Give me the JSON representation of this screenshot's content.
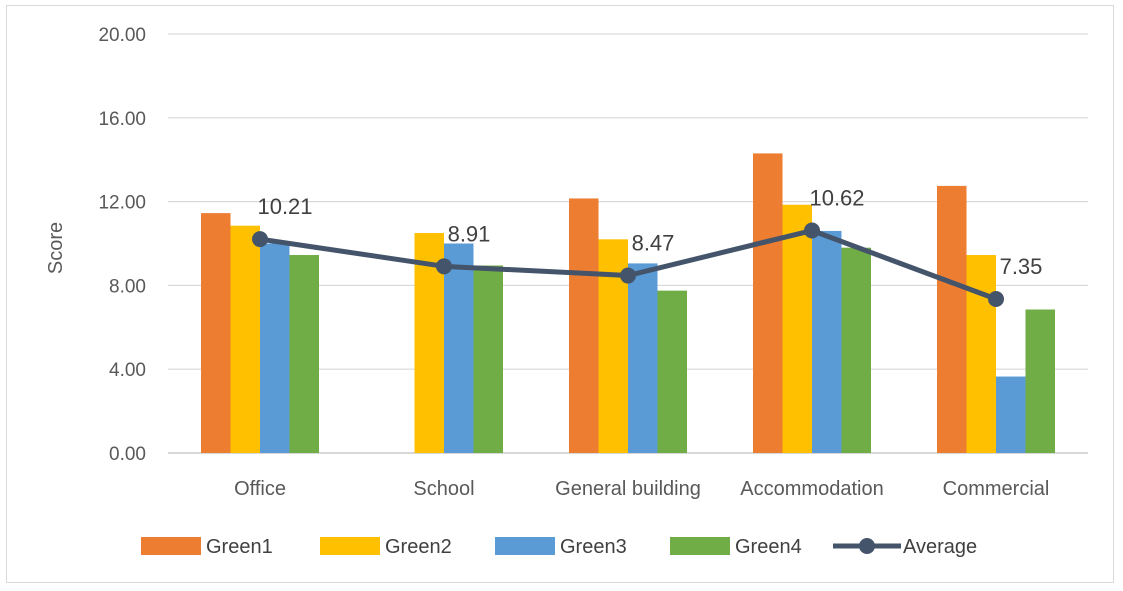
{
  "chart_data": {
    "type": "bar",
    "title": "",
    "xlabel": "",
    "ylabel": "Score",
    "ylim": [
      0,
      20
    ],
    "y_ticks": [
      "0.00",
      "4.00",
      "8.00",
      "12.00",
      "16.00",
      "20.00"
    ],
    "y_tick_values": [
      0,
      4,
      8,
      12,
      16,
      20
    ],
    "grid": "horizontal",
    "legend_position": "bottom",
    "categories": [
      "Office",
      "School",
      "General building",
      "Accommodation",
      "Commercial"
    ],
    "series": [
      {
        "name": "Green1",
        "type": "bar",
        "color": "#ED7D31",
        "values": [
          11.45,
          null,
          12.15,
          14.3,
          12.75
        ]
      },
      {
        "name": "Green2",
        "type": "bar",
        "color": "#FFC000",
        "values": [
          10.85,
          10.5,
          10.2,
          11.85,
          9.45
        ]
      },
      {
        "name": "Green3",
        "type": "bar",
        "color": "#5B9BD5",
        "values": [
          10.0,
          10.0,
          9.05,
          10.6,
          3.65
        ]
      },
      {
        "name": "Green4",
        "type": "bar",
        "color": "#70AD47",
        "values": [
          9.45,
          8.95,
          7.75,
          9.8,
          6.85
        ]
      },
      {
        "name": "Average",
        "type": "line",
        "color": "#44546A",
        "values": [
          10.21,
          8.91,
          8.47,
          10.62,
          7.35
        ],
        "labels": [
          "10.21",
          "8.91",
          "8.47",
          "10.62",
          "7.35"
        ]
      }
    ]
  }
}
